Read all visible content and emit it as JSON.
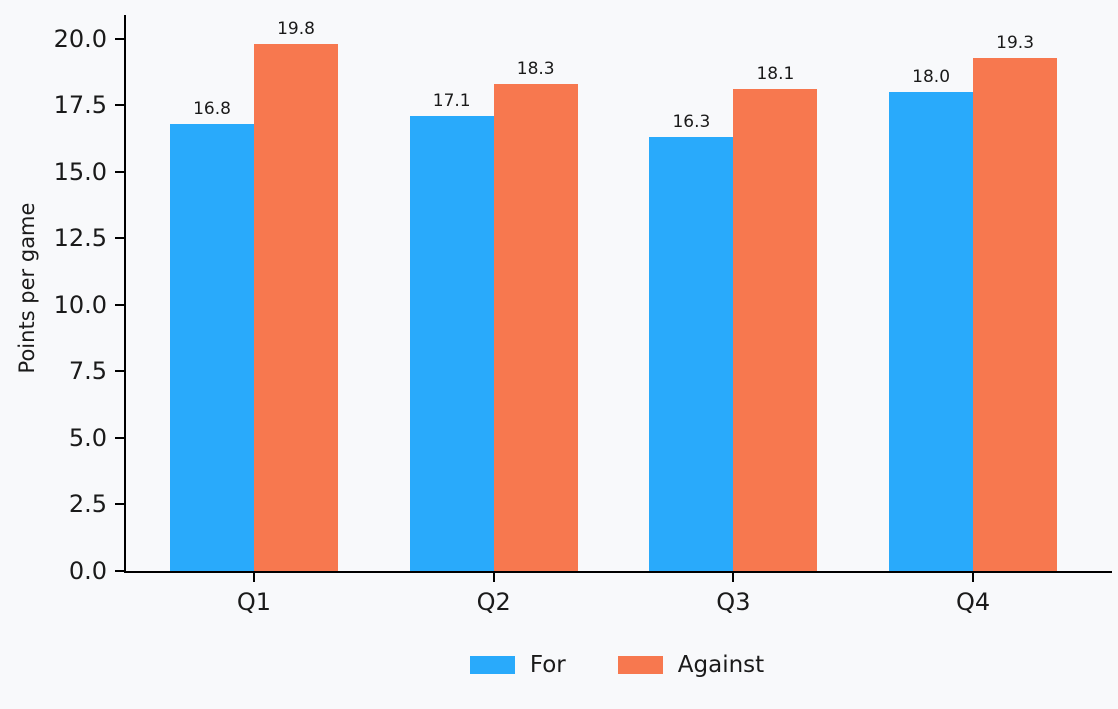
{
  "chart_data": {
    "type": "bar",
    "title": "",
    "xlabel": "",
    "ylabel": "Points per game",
    "categories": [
      "Q1",
      "Q2",
      "Q3",
      "Q4"
    ],
    "series": [
      {
        "name": "For",
        "color": "#29aafb",
        "values": [
          16.8,
          17.1,
          16.3,
          18.0
        ]
      },
      {
        "name": "Against",
        "color": "#f7784f",
        "values": [
          19.8,
          18.3,
          18.1,
          19.3
        ]
      }
    ],
    "value_labels": [
      [
        "16.8",
        "17.1",
        "16.3",
        "18.0"
      ],
      [
        "19.8",
        "18.3",
        "18.1",
        "19.3"
      ]
    ],
    "yticks": [
      0,
      2.5,
      5,
      7.5,
      10,
      12.5,
      15,
      17.5,
      20
    ],
    "ytick_labels": [
      "0.0",
      "2.5",
      "5.0",
      "7.5",
      "10.0",
      "12.5",
      "15.0",
      "17.5",
      "20.0"
    ],
    "ylim": [
      0,
      20.9
    ],
    "grid": false,
    "legend_position": "bottom-center",
    "background_color": "#f8f9fb",
    "axis_color": "#000000",
    "text_color": "#1a1a1a"
  }
}
